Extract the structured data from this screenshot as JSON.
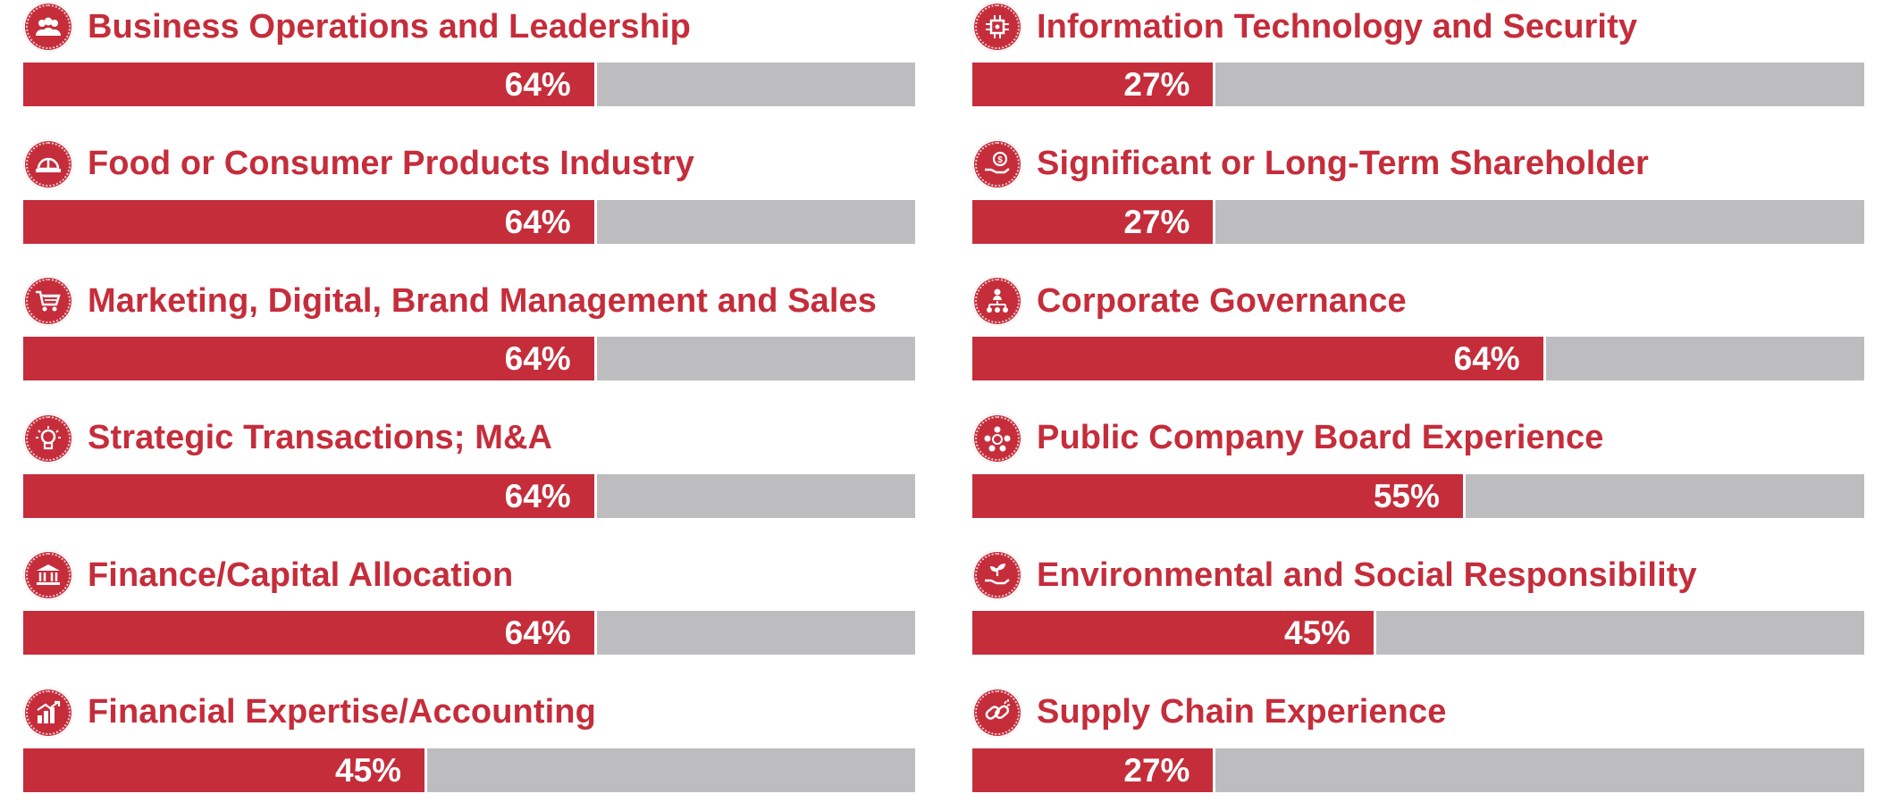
{
  "chart_data": {
    "type": "bar",
    "orientation": "horizontal",
    "value_unit": "%",
    "xlim": [
      0,
      100
    ],
    "left_column": [
      {
        "label": "Business Operations and Leadership",
        "value": 64,
        "value_label": "64%",
        "icon": "people-group-icon"
      },
      {
        "label": "Food or Consumer Products Industry",
        "value": 64,
        "value_label": "64%",
        "icon": "hard-hat-icon"
      },
      {
        "label": "Marketing, Digital, Brand Management and Sales",
        "value": 64,
        "value_label": "64%",
        "icon": "shopping-cart-icon"
      },
      {
        "label": "Strategic Transactions; M&A",
        "value": 64,
        "value_label": "64%",
        "icon": "lightbulb-icon"
      },
      {
        "label": "Finance/Capital Allocation",
        "value": 64,
        "value_label": "64%",
        "icon": "bank-building-icon"
      },
      {
        "label": "Financial Expertise/Accounting",
        "value": 45,
        "value_label": "45%",
        "icon": "bar-growth-icon"
      }
    ],
    "right_column": [
      {
        "label": "Information Technology and Security",
        "value": 27,
        "value_label": "27%",
        "icon": "circuit-chip-icon"
      },
      {
        "label": "Significant or Long-Term Shareholder",
        "value": 27,
        "value_label": "27%",
        "icon": "hand-coin-icon"
      },
      {
        "label": "Corporate Governance",
        "value": 64,
        "value_label": "64%",
        "icon": "org-chart-icon"
      },
      {
        "label": "Public Company Board Experience",
        "value": 55,
        "value_label": "55%",
        "icon": "board-network-icon"
      },
      {
        "label": "Environmental and Social Responsibility",
        "value": 45,
        "value_label": "45%",
        "icon": "hand-plant-icon"
      },
      {
        "label": "Supply Chain Experience",
        "value": 27,
        "value_label": "27%",
        "icon": "chain-link-icon"
      }
    ]
  },
  "colors": {
    "bar": "#c52d3b",
    "track": "#bdbdbf",
    "label": "#c52d3b",
    "value_text": "#ffffff"
  }
}
